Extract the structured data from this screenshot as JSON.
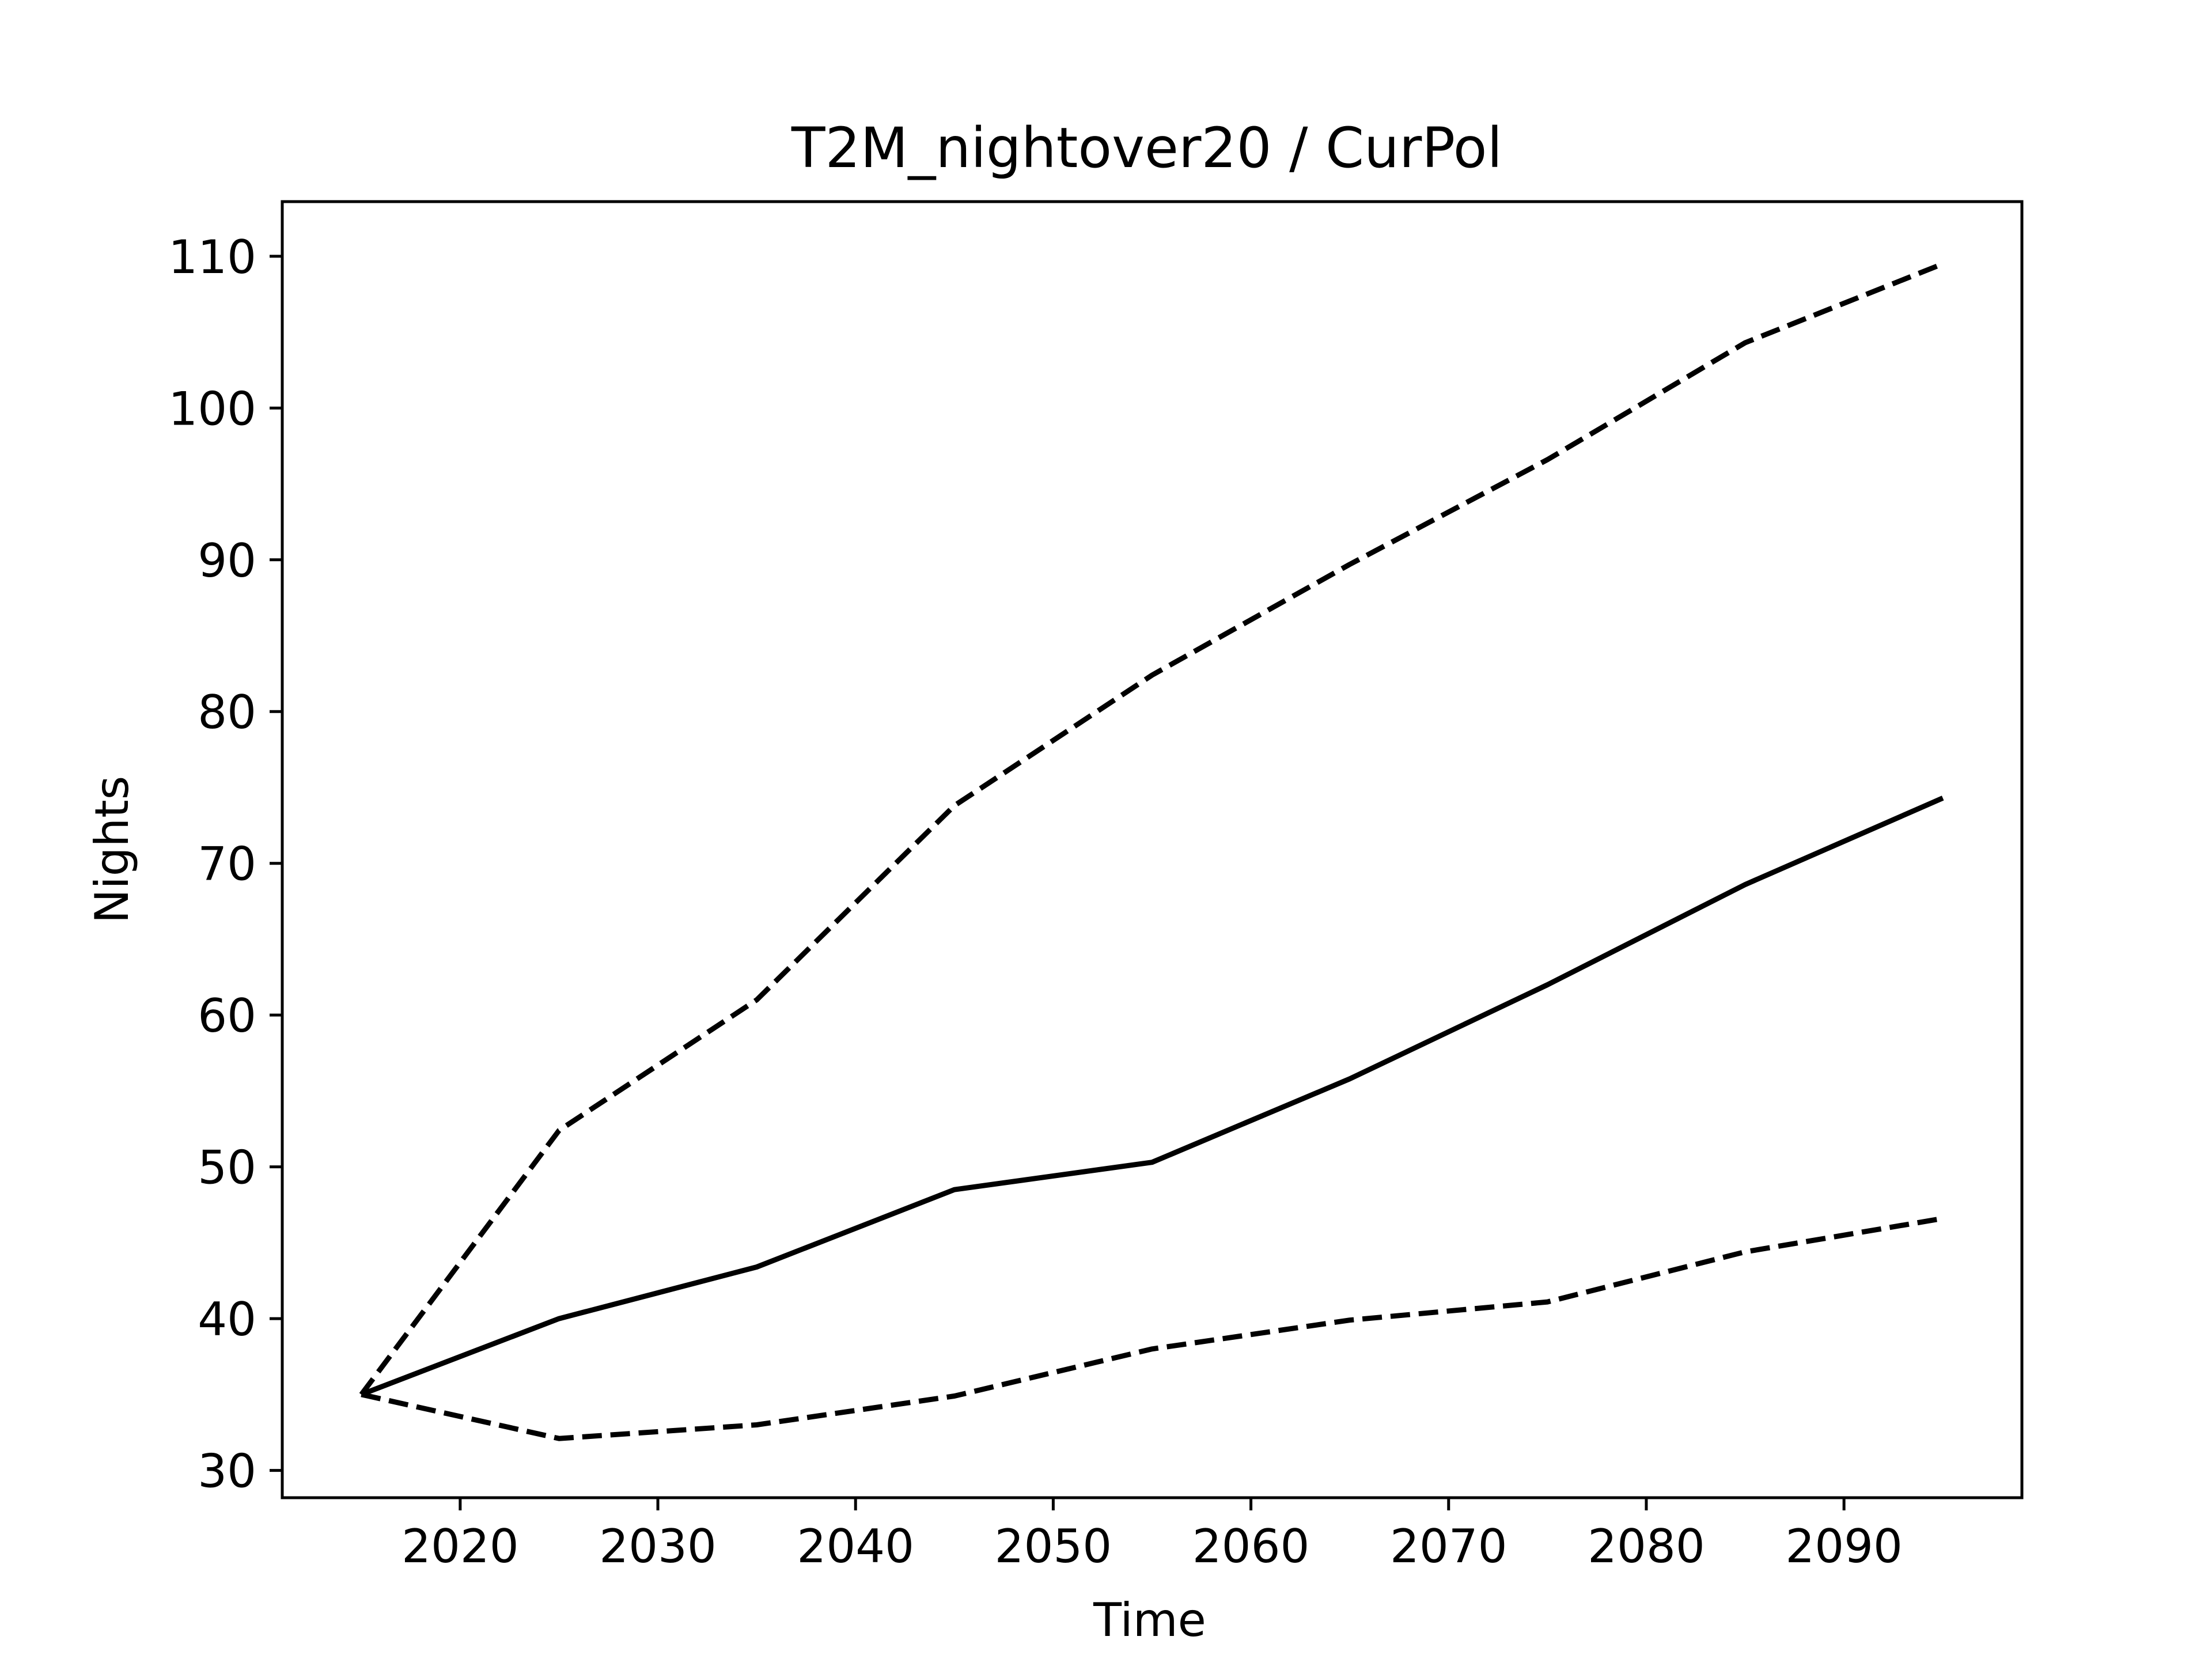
{
  "chart_data": {
    "type": "line",
    "title": "T2M_nightover20 / CurPol",
    "xlabel": "Time",
    "ylabel": "Nights",
    "xlim": [
      2011,
      2099
    ],
    "ylim": [
      28.2,
      113.6
    ],
    "xticks": [
      2020,
      2030,
      2040,
      2050,
      2060,
      2070,
      2080,
      2090
    ],
    "yticks": [
      30,
      40,
      50,
      60,
      70,
      80,
      90,
      100,
      110
    ],
    "grid": false,
    "legend": "none",
    "x": [
      2015,
      2025,
      2035,
      2045,
      2055,
      2065,
      2075,
      2085,
      2095
    ],
    "series": [
      {
        "style": "dashed",
        "color": "#000000",
        "values": [
          35.0,
          52.4,
          61.0,
          73.8,
          82.4,
          89.7,
          96.6,
          104.3,
          109.5
        ]
      },
      {
        "style": "solid",
        "color": "#000000",
        "values": [
          35.0,
          40.0,
          43.4,
          48.5,
          50.3,
          55.8,
          62.0,
          68.6,
          74.3
        ]
      },
      {
        "style": "dashed",
        "color": "#000000",
        "values": [
          35.0,
          32.1,
          33.0,
          34.9,
          38.0,
          39.9,
          41.1,
          44.4,
          46.6
        ]
      }
    ]
  }
}
